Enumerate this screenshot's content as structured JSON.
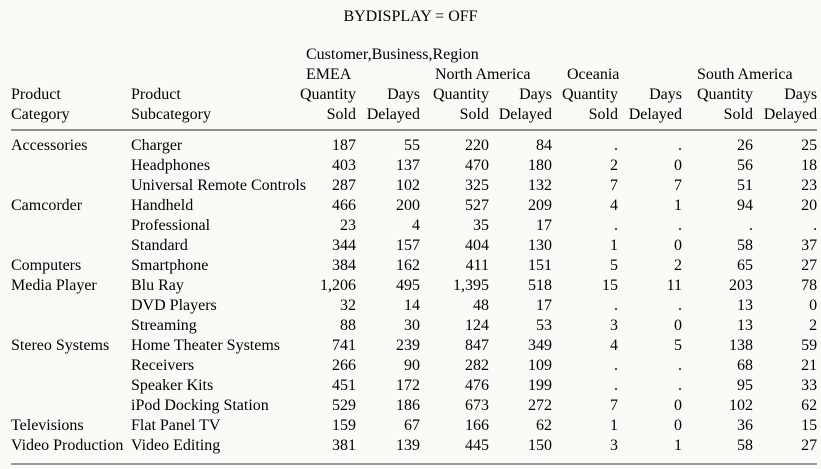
{
  "title": "BYDISPLAY = OFF",
  "colors": {
    "background": "#fafaf6",
    "text": "#000000",
    "header_rule": "#8f8f8f",
    "bottom_rule": "#9a9a9a"
  },
  "table": {
    "spanner": "Customer,Business,Region",
    "regions": [
      "EMEA",
      "North America",
      "Oceania",
      "South America"
    ],
    "row_headers": [
      {
        "line1": "Product",
        "line2": "Category"
      },
      {
        "line1": "Product",
        "line2": "Subcategory"
      }
    ],
    "measures": [
      {
        "line1": "Quantity",
        "line2": "Sold"
      },
      {
        "line1": "Days",
        "line2": "Delayed"
      }
    ],
    "missing_value_symbol": ".",
    "rows": [
      {
        "category": "Accessories",
        "subcategory": "Charger",
        "values": [
          "187",
          "55",
          "220",
          "84",
          ".",
          ".",
          "26",
          "25"
        ]
      },
      {
        "category": "",
        "subcategory": "Headphones",
        "values": [
          "403",
          "137",
          "470",
          "180",
          "2",
          "0",
          "56",
          "18"
        ]
      },
      {
        "category": "",
        "subcategory": "Universal Remote Controls",
        "values": [
          "287",
          "102",
          "325",
          "132",
          "7",
          "7",
          "51",
          "23"
        ]
      },
      {
        "category": "Camcorder",
        "subcategory": "Handheld",
        "values": [
          "466",
          "200",
          "527",
          "209",
          "4",
          "1",
          "94",
          "20"
        ]
      },
      {
        "category": "",
        "subcategory": "Professional",
        "values": [
          "23",
          "4",
          "35",
          "17",
          ".",
          ".",
          ".",
          "."
        ]
      },
      {
        "category": "",
        "subcategory": "Standard",
        "values": [
          "344",
          "157",
          "404",
          "130",
          "1",
          "0",
          "58",
          "37"
        ]
      },
      {
        "category": "Computers",
        "subcategory": "Smartphone",
        "values": [
          "384",
          "162",
          "411",
          "151",
          "5",
          "2",
          "65",
          "27"
        ]
      },
      {
        "category": "Media Player",
        "subcategory": "Blu Ray",
        "values": [
          "1,206",
          "495",
          "1,395",
          "518",
          "15",
          "11",
          "203",
          "78"
        ]
      },
      {
        "category": "",
        "subcategory": "DVD Players",
        "values": [
          "32",
          "14",
          "48",
          "17",
          ".",
          ".",
          "13",
          "0"
        ]
      },
      {
        "category": "",
        "subcategory": "Streaming",
        "values": [
          "88",
          "30",
          "124",
          "53",
          "3",
          "0",
          "13",
          "2"
        ]
      },
      {
        "category": "Stereo Systems",
        "subcategory": "Home Theater Systems",
        "values": [
          "741",
          "239",
          "847",
          "349",
          "4",
          "5",
          "138",
          "59"
        ]
      },
      {
        "category": "",
        "subcategory": "Receivers",
        "values": [
          "266",
          "90",
          "282",
          "109",
          ".",
          ".",
          "68",
          "21"
        ]
      },
      {
        "category": "",
        "subcategory": "Speaker Kits",
        "values": [
          "451",
          "172",
          "476",
          "199",
          ".",
          ".",
          "95",
          "33"
        ]
      },
      {
        "category": "",
        "subcategory": "iPod Docking Station",
        "values": [
          "529",
          "186",
          "673",
          "272",
          "7",
          "0",
          "102",
          "62"
        ]
      },
      {
        "category": "Televisions",
        "subcategory": "Flat Panel TV",
        "values": [
          "159",
          "67",
          "166",
          "62",
          "1",
          "0",
          "36",
          "15"
        ]
      },
      {
        "category": "Video Production",
        "subcategory": "Video Editing",
        "values": [
          "381",
          "139",
          "445",
          "150",
          "3",
          "1",
          "58",
          "27"
        ]
      }
    ]
  }
}
